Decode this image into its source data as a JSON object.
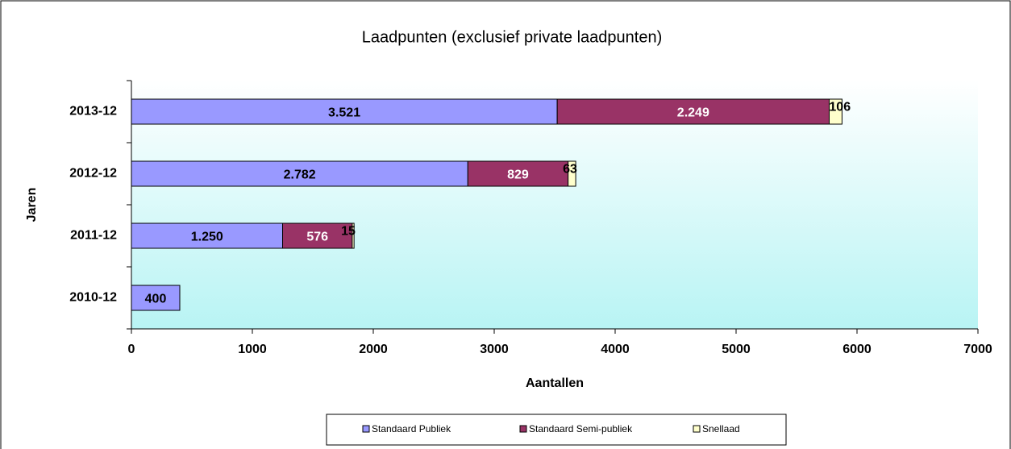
{
  "chart_data": {
    "type": "stacked-bar-horizontal",
    "title": "Laadpunten (exclusief private laadpunten)",
    "x_label": "Aantallen",
    "y_label": "Jaren",
    "categories": [
      "2010-12",
      "2011-12",
      "2012-12",
      "2013-12"
    ],
    "series": [
      {
        "name": "Standaard Publiek",
        "color": "#9999ff",
        "label_color": "#000000",
        "values": [
          400,
          1250,
          2782,
          3521
        ],
        "value_labels": [
          "400",
          "1.250",
          "2.782",
          "3.521"
        ]
      },
      {
        "name": "Standaard Semi-publiek",
        "color": "#993366",
        "label_color": "#ffffff",
        "values": [
          null,
          576,
          829,
          2249
        ],
        "value_labels": [
          null,
          "576",
          "829",
          "2.249"
        ]
      },
      {
        "name": "Snellaad",
        "color": "#ffffcc",
        "label_color": "#000000",
        "values": [
          null,
          15,
          63,
          106
        ],
        "value_labels": [
          null,
          "15",
          "63",
          "106"
        ]
      }
    ],
    "xlim": [
      0,
      7000
    ],
    "xticks": [
      0,
      1000,
      2000,
      3000,
      4000,
      5000,
      6000,
      7000
    ],
    "legend": "bottom"
  }
}
